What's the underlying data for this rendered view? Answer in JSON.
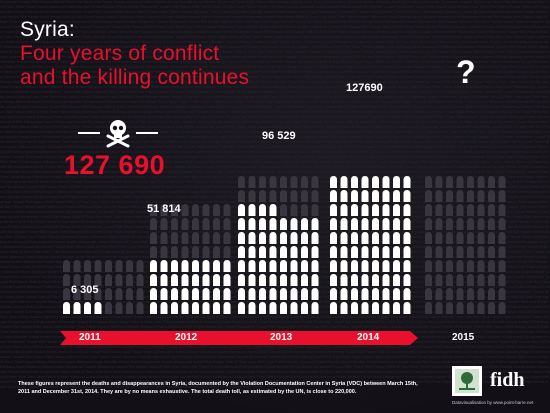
{
  "title": {
    "line1": "Syria:",
    "line2": "Four years of conflict",
    "line3": "and the killing continues"
  },
  "total_label": "127 690",
  "unknown_mark": "?",
  "footnote": "These figures represent the deaths and disappearances in Syria, documented by the Violation Documentation Center in Syria (VDC) between March 15th, 2011 and December 31st, 2014. They are by no means exhaustive. The total death toll, as estimated by the UN, is close to 220,000.",
  "logo_text": "fidh",
  "credit_text": "Datavisualisation by www.point-barre.net",
  "colors": {
    "accent_red": "#e8102d",
    "background": "#141018",
    "figure_white": "#ffffff",
    "figure_grey": "#3a3640"
  },
  "icons": {
    "skull": "skull-crossbones-icon",
    "person": "shrouded-body-icon"
  },
  "chart_data": {
    "type": "bar",
    "categories": [
      "2011",
      "2012",
      "2013",
      "2014",
      "2015"
    ],
    "series": [
      {
        "values": [
          6305,
          51814,
          96529,
          127690,
          null
        ]
      }
    ],
    "value_labels": [
      "6 305",
      "51 814",
      "96 529",
      "127690",
      "?"
    ],
    "cumulative": true,
    "title": "",
    "xlabel": "",
    "ylabel": "",
    "ylim": [
      0,
      220000
    ],
    "grid": false
  }
}
